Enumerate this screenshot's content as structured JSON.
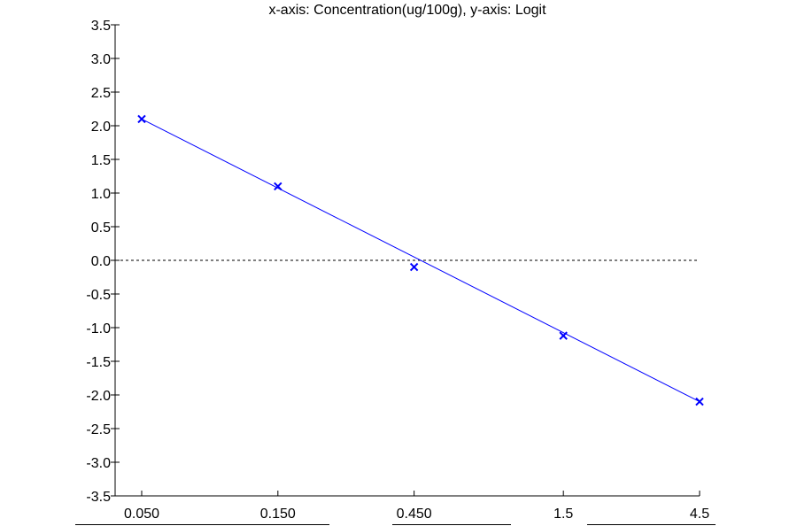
{
  "chart_data": {
    "type": "scatter",
    "title": "x-axis: Concentration(ug/100g), y-axis: Logit",
    "x_scale": "log",
    "x_ticks": [
      "0.050",
      "0.150",
      "0.450",
      "1.5",
      "4.5"
    ],
    "x_tick_values": [
      0.05,
      0.15,
      0.45,
      1.5,
      4.5
    ],
    "ylim": [
      -3.5,
      3.5
    ],
    "y_ticks": [
      "3.5",
      "3.0",
      "2.5",
      "2.0",
      "1.5",
      "1.0",
      "0.5",
      "0.0",
      "-0.5",
      "-1.0",
      "-1.5",
      "-2.0",
      "-2.5",
      "-3.0",
      "-3.5"
    ],
    "y_tick_values": [
      3.5,
      3.0,
      2.5,
      2.0,
      1.5,
      1.0,
      0.5,
      0.0,
      -0.5,
      -1.0,
      -1.5,
      -2.0,
      -2.5,
      -3.0,
      -3.5
    ],
    "points": [
      {
        "x": 0.05,
        "y": 2.1
      },
      {
        "x": 0.15,
        "y": 1.1
      },
      {
        "x": 0.45,
        "y": -0.1
      },
      {
        "x": 1.5,
        "y": -1.12
      },
      {
        "x": 4.5,
        "y": -2.1
      }
    ],
    "fit_line": {
      "x": [
        0.05,
        4.5
      ],
      "y": [
        2.1,
        -2.1
      ]
    },
    "reference_line_y": 0.0,
    "grid": false,
    "colors": {
      "series": "#0000ff",
      "axis": "#000000"
    }
  }
}
